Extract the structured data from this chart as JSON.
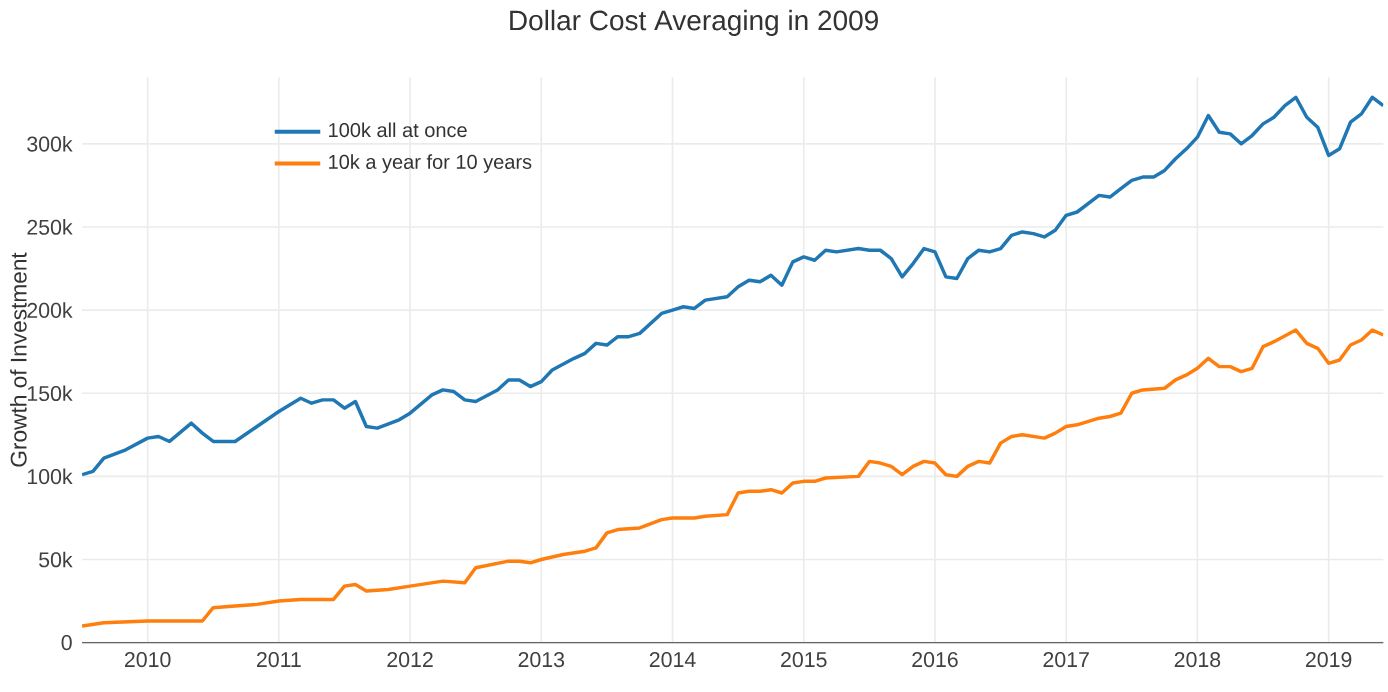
{
  "chart_data": {
    "type": "line",
    "title": "Dollar Cost Averaging in 2009",
    "ylabel": "Growth of Investment",
    "xlim": [
      "2009-07",
      "2019-06"
    ],
    "xticks": [
      "2010",
      "2011",
      "2012",
      "2013",
      "2014",
      "2015",
      "2016",
      "2017",
      "2018",
      "2019"
    ],
    "ylim": [
      0,
      340000
    ],
    "yticks": [
      {
        "value": 0,
        "label": "0"
      },
      {
        "value": 50000,
        "label": "50k"
      },
      {
        "value": 100000,
        "label": "100k"
      },
      {
        "value": 150000,
        "label": "150k"
      },
      {
        "value": 200000,
        "label": "200k"
      },
      {
        "value": 250000,
        "label": "250k"
      },
      {
        "value": 300000,
        "label": "300k"
      }
    ],
    "grid": true,
    "legend": "top left",
    "marker": "none",
    "line_style": "solid",
    "series": [
      {
        "name": "100k all at once",
        "color": "#1f77b4",
        "x": [
          "2009-07",
          "2009-08",
          "2009-09",
          "2009-11",
          "2010-01",
          "2010-02",
          "2010-03",
          "2010-05",
          "2010-06",
          "2010-07",
          "2010-09",
          "2010-11",
          "2011-01",
          "2011-03",
          "2011-04",
          "2011-05",
          "2011-06",
          "2011-07",
          "2011-08",
          "2011-09",
          "2011-10",
          "2011-12",
          "2012-01",
          "2012-03",
          "2012-04",
          "2012-05",
          "2012-06",
          "2012-07",
          "2012-09",
          "2012-10",
          "2012-11",
          "2012-12",
          "2013-01",
          "2013-02",
          "2013-04",
          "2013-05",
          "2013-06",
          "2013-07",
          "2013-08",
          "2013-09",
          "2013-10",
          "2013-11",
          "2013-12",
          "2014-01",
          "2014-02",
          "2014-03",
          "2014-04",
          "2014-06",
          "2014-07",
          "2014-08",
          "2014-09",
          "2014-10",
          "2014-11",
          "2014-12",
          "2015-01",
          "2015-02",
          "2015-03",
          "2015-04",
          "2015-06",
          "2015-07",
          "2015-08",
          "2015-09",
          "2015-10",
          "2015-11",
          "2015-12",
          "2016-01",
          "2016-02",
          "2016-03",
          "2016-04",
          "2016-05",
          "2016-06",
          "2016-07",
          "2016-08",
          "2016-09",
          "2016-10",
          "2016-11",
          "2016-12",
          "2017-01",
          "2017-02",
          "2017-03",
          "2017-04",
          "2017-05",
          "2017-06",
          "2017-07",
          "2017-08",
          "2017-09",
          "2017-10",
          "2017-11",
          "2017-12",
          "2018-01",
          "2018-02",
          "2018-03",
          "2018-04",
          "2018-05",
          "2018-06",
          "2018-07",
          "2018-08",
          "2018-09",
          "2018-10",
          "2018-11",
          "2018-12",
          "2019-01",
          "2019-02",
          "2019-03",
          "2019-04",
          "2019-05",
          "2019-06"
        ],
        "values": [
          101000,
          103000,
          111000,
          116000,
          123000,
          124000,
          121000,
          132000,
          126000,
          121000,
          121000,
          130000,
          139000,
          147000,
          144000,
          146000,
          146000,
          141000,
          145000,
          130000,
          129000,
          134000,
          138000,
          149000,
          152000,
          151000,
          146000,
          145000,
          152000,
          158000,
          158000,
          154000,
          157000,
          164000,
          171000,
          174000,
          180000,
          179000,
          184000,
          184000,
          186000,
          192000,
          198000,
          200000,
          202000,
          201000,
          206000,
          208000,
          214000,
          218000,
          217000,
          221000,
          215000,
          229000,
          232000,
          230000,
          236000,
          235000,
          237000,
          236000,
          236000,
          231000,
          220000,
          228000,
          237000,
          235000,
          220000,
          219000,
          231000,
          236000,
          235000,
          237000,
          245000,
          247000,
          246000,
          244000,
          248000,
          257000,
          259000,
          264000,
          269000,
          268000,
          273000,
          278000,
          280000,
          280000,
          284000,
          291000,
          297000,
          304000,
          317000,
          307000,
          306000,
          300000,
          305000,
          312000,
          316000,
          323000,
          328000,
          316000,
          310000,
          293000,
          297000,
          313000,
          318000,
          328000,
          323000
        ]
      },
      {
        "name": "10k a year for 10 years",
        "color": "#ff7f0e",
        "x": [
          "2009-07",
          "2009-09",
          "2010-01",
          "2010-04",
          "2010-06",
          "2010-07",
          "2010-09",
          "2010-11",
          "2011-01",
          "2011-03",
          "2011-06",
          "2011-07",
          "2011-08",
          "2011-09",
          "2011-11",
          "2012-01",
          "2012-04",
          "2012-06",
          "2012-07",
          "2012-10",
          "2012-11",
          "2012-12",
          "2013-01",
          "2013-03",
          "2013-05",
          "2013-06",
          "2013-07",
          "2013-08",
          "2013-10",
          "2013-12",
          "2014-01",
          "2014-03",
          "2014-04",
          "2014-06",
          "2014-07",
          "2014-08",
          "2014-09",
          "2014-10",
          "2014-11",
          "2014-12",
          "2015-01",
          "2015-02",
          "2015-03",
          "2015-06",
          "2015-07",
          "2015-08",
          "2015-09",
          "2015-10",
          "2015-11",
          "2015-12",
          "2016-01",
          "2016-02",
          "2016-03",
          "2016-04",
          "2016-05",
          "2016-06",
          "2016-07",
          "2016-08",
          "2016-09",
          "2016-10",
          "2016-11",
          "2016-12",
          "2017-01",
          "2017-02",
          "2017-04",
          "2017-05",
          "2017-06",
          "2017-07",
          "2017-08",
          "2017-10",
          "2017-11",
          "2017-12",
          "2018-01",
          "2018-02",
          "2018-03",
          "2018-04",
          "2018-05",
          "2018-06",
          "2018-07",
          "2018-08",
          "2018-10",
          "2018-11",
          "2018-12",
          "2019-01",
          "2019-02",
          "2019-03",
          "2019-04",
          "2019-05",
          "2019-06"
        ],
        "values": [
          10000,
          12000,
          13000,
          13000,
          13000,
          21000,
          22000,
          23000,
          25000,
          26000,
          26000,
          34000,
          35000,
          31000,
          32000,
          34000,
          37000,
          36000,
          45000,
          49000,
          49000,
          48000,
          50000,
          53000,
          55000,
          57000,
          66000,
          68000,
          69000,
          74000,
          75000,
          75000,
          76000,
          77000,
          90000,
          91000,
          91000,
          92000,
          90000,
          96000,
          97000,
          97000,
          99000,
          100000,
          109000,
          108000,
          106000,
          101000,
          106000,
          109000,
          108000,
          101000,
          100000,
          106000,
          109000,
          108000,
          120000,
          124000,
          125000,
          124000,
          123000,
          126000,
          130000,
          131000,
          135000,
          136000,
          138000,
          150000,
          152000,
          153000,
          158000,
          161000,
          165000,
          171000,
          166000,
          166000,
          163000,
          165000,
          178000,
          181000,
          188000,
          180000,
          177000,
          168000,
          170000,
          179000,
          182000,
          188000,
          185000
        ]
      }
    ]
  }
}
